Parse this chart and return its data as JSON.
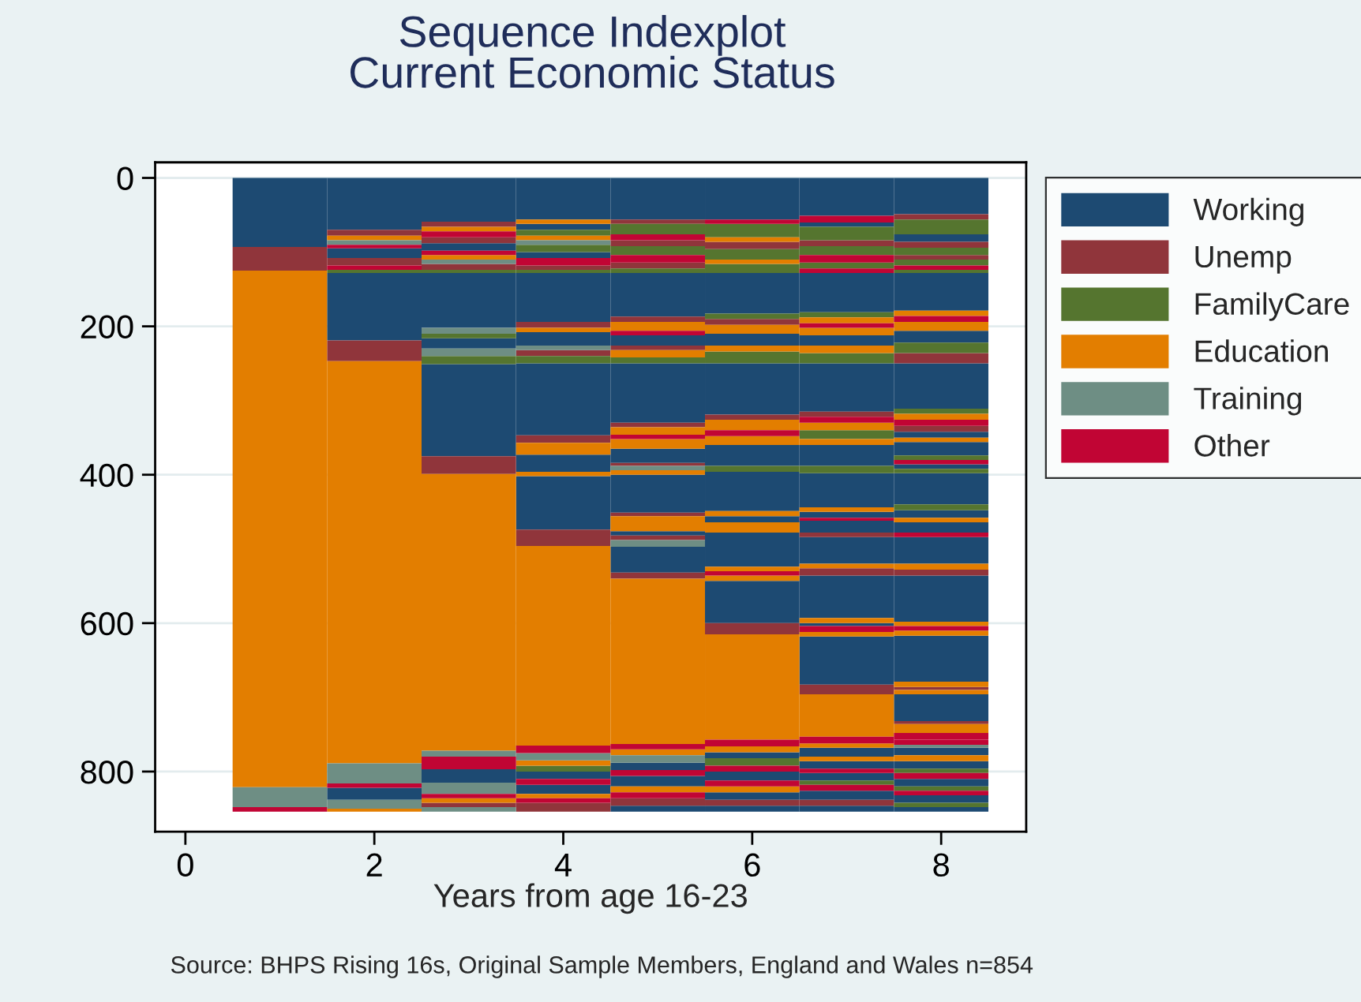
{
  "chart_data": {
    "type": "bar",
    "title": "Sequence Indexplot",
    "subtitle": "Current Economic Status",
    "xlabel": "Years from age 16-23",
    "annotations": [
      "Source: BHPS Rising 16s, Original Sample Members, England and Wales n=854"
    ],
    "xlim": [
      -0.32,
      8.9
    ],
    "xticks": [
      0,
      2,
      4,
      6,
      8
    ],
    "ylim": [
      881,
      -21
    ],
    "yticks": [
      0,
      200,
      400,
      600,
      800
    ],
    "grid": "y",
    "legend": "right",
    "series": [
      {
        "name": "Working",
        "color": "#1d4a72",
        "x": [
          1,
          2,
          3,
          4,
          5,
          6,
          7,
          8
        ],
        "base": [
          0,
          0,
          0,
          0,
          0,
          0,
          0,
          0
        ],
        "values": [
          93,
          70,
          59,
          56,
          56,
          56,
          51,
          49
        ]
      },
      {
        "color": "#1d4a72",
        "x": [
          2,
          3,
          4,
          5,
          6,
          7,
          8
        ],
        "base": [
          95,
          88,
          62,
          128,
          128,
          60,
          76
        ],
        "values": [
          13,
          10,
          8,
          59,
          55,
          6,
          10
        ]
      },
      {
        "color": "#1d4a72",
        "x": [
          2,
          3,
          4,
          5,
          6,
          7,
          8
        ],
        "base": [
          128,
          128,
          100,
          212,
          210,
          128,
          128
        ],
        "values": [
          91,
          74,
          8,
          14,
          16,
          53,
          51
        ]
      },
      {
        "color": "#1d4a72",
        "x": [
          2,
          3,
          4,
          5,
          6,
          7,
          8
        ],
        "base": [
          822,
          216,
          128,
          250,
          250,
          212,
          206
        ],
        "values": [
          16,
          14,
          66,
          80,
          69,
          14,
          16
        ]
      },
      {
        "color": "#1d4a72",
        "x": [
          3,
          4,
          5,
          6,
          7,
          8
        ],
        "base": [
          251,
          208,
          365,
          360,
          250,
          250
        ],
        "values": [
          124,
          18,
          19,
          28,
          65,
          61
        ]
      },
      {
        "color": "#1d4a72",
        "x": [
          3,
          4,
          5,
          6,
          7,
          8
        ],
        "base": [
          797,
          250,
          400,
          396,
          360,
          342
        ],
        "values": [
          18,
          97,
          51,
          53,
          28,
          8
        ]
      },
      {
        "color": "#1d4a72",
        "x": [
          4,
          5,
          6,
          7,
          8
        ],
        "base": [
          373,
          476,
          456,
          398,
          356
        ],
        "values": [
          23,
          6,
          8,
          46,
          18
        ]
      },
      {
        "color": "#1d4a72",
        "x": [
          4,
          5,
          6,
          7,
          8
        ],
        "base": [
          402,
          497,
          478,
          450,
          386
        ],
        "values": [
          72,
          35,
          46,
          8,
          6
        ]
      },
      {
        "color": "#1d4a72",
        "x": [
          4,
          5,
          6,
          7,
          8
        ],
        "base": [
          800,
          788,
          543,
          462,
          398
        ],
        "values": [
          10,
          10,
          57,
          16,
          42
        ]
      },
      {
        "color": "#1d4a72",
        "x": [
          4,
          5,
          6,
          7,
          8
        ],
        "base": [
          818,
          806,
          774,
          484,
          448
        ],
        "values": [
          12,
          14,
          8,
          36,
          10
        ]
      },
      {
        "color": "#1d4a72",
        "x": [
          5,
          6,
          7,
          8
        ],
        "base": [
          846,
          800,
          536,
          464
        ],
        "values": [
          8,
          12,
          57,
          14
        ]
      },
      {
        "color": "#1d4a72",
        "x": [
          6,
          7,
          8
        ],
        "base": [
          828,
          600,
          484
        ],
        "values": [
          10,
          4,
          36
        ]
      },
      {
        "color": "#1d4a72",
        "x": [
          6,
          7,
          8
        ],
        "base": [
          846,
          618,
          536
        ],
        "values": [
          8,
          65,
          62
        ]
      },
      {
        "color": "#1d4a72",
        "x": [
          7,
          8
        ],
        "base": [
          768,
          617
        ],
        "values": [
          12,
          62
        ]
      },
      {
        "color": "#1d4a72",
        "x": [
          7,
          8
        ],
        "base": [
          786,
          696
        ],
        "values": [
          10,
          36
        ]
      },
      {
        "color": "#1d4a72",
        "x": [
          7,
          8
        ],
        "base": [
          802,
          768
        ],
        "values": [
          10,
          10
        ]
      },
      {
        "color": "#1d4a72",
        "x": [
          7,
          8
        ],
        "base": [
          826,
          786
        ],
        "values": [
          12,
          10
        ]
      },
      {
        "color": "#1d4a72",
        "x": [
          7,
          8
        ],
        "base": [
          846,
          810
        ],
        "values": [
          8,
          10
        ]
      },
      {
        "color": "#1d4a72",
        "x": [
          8
        ],
        "base": [
          832
        ],
        "values": [
          10
        ]
      },
      {
        "color": "#1d4a72",
        "x": [
          8
        ],
        "base": [
          848
        ],
        "values": [
          6
        ]
      },
      {
        "name": "Unemp",
        "color": "#90353b",
        "x": [
          1,
          2,
          3,
          4,
          5,
          6,
          7,
          8
        ],
        "base": [
          93,
          70,
          59,
          118,
          56,
          86,
          84,
          49
        ],
        "values": [
          32,
          8,
          7,
          6,
          6,
          10,
          8,
          7
        ]
      },
      {
        "color": "#90353b",
        "x": [
          2,
          3,
          4,
          5,
          6,
          7,
          8
        ],
        "base": [
          108,
          80,
          194,
          84,
          190,
          315,
          86
        ],
        "values": [
          10,
          8,
          8,
          8,
          8,
          7,
          8
        ]
      },
      {
        "color": "#90353b",
        "x": [
          2,
          3,
          4,
          5,
          6,
          7,
          8
        ],
        "base": [
          219,
          116,
          232,
          114,
          319,
          478,
          104
        ],
        "values": [
          28,
          8,
          8,
          8,
          7,
          6,
          6
        ]
      },
      {
        "color": "#90353b",
        "x": [
          3,
          4,
          5,
          6,
          7,
          8
        ],
        "base": [
          375,
          347,
          187,
          600,
          526,
          236
        ],
        "values": [
          24,
          10,
          7,
          15,
          10,
          14
        ]
      },
      {
        "color": "#90353b",
        "x": [
          3,
          4,
          5,
          6,
          7,
          8
        ],
        "base": [
          842,
          474,
          226,
          838,
          683,
          334
        ],
        "values": [
          6,
          22,
          6,
          8,
          13,
          8
        ]
      },
      {
        "color": "#90353b",
        "x": [
          4,
          5,
          7,
          8
        ],
        "base": [
          842,
          330,
          838,
          528
        ],
        "values": [
          12,
          6,
          8,
          8
        ]
      },
      {
        "color": "#90353b",
        "x": [
          5,
          8
        ],
        "base": [
          384,
          686
        ],
        "values": [
          4,
          4
        ]
      },
      {
        "color": "#90353b",
        "x": [
          5,
          8
        ],
        "base": [
          451,
          732
        ],
        "values": [
          5,
          4
        ]
      },
      {
        "color": "#90353b",
        "x": [
          5
        ],
        "base": [
          482
        ],
        "values": [
          6
        ]
      },
      {
        "color": "#90353b",
        "x": [
          5
        ],
        "base": [
          532
        ],
        "values": [
          8
        ]
      },
      {
        "color": "#90353b",
        "x": [
          5
        ],
        "base": [
          836
        ],
        "values": [
          10
        ]
      },
      {
        "name": "FamilyCare",
        "color": "#55752f",
        "x": [
          2,
          3,
          4,
          5,
          6,
          7,
          8
        ],
        "base": [
          124,
          124,
          70,
          62,
          62,
          66,
          56
        ],
        "values": [
          4,
          4,
          8,
          14,
          18,
          18,
          20
        ]
      },
      {
        "color": "#55752f",
        "x": [
          3,
          4,
          5,
          6,
          7,
          8
        ],
        "base": [
          210,
          90,
          92,
          96,
          92,
          94
        ],
        "values": [
          6,
          10,
          12,
          14,
          12,
          10
        ]
      },
      {
        "color": "#55752f",
        "x": [
          3,
          4,
          5,
          6,
          7,
          8
        ],
        "base": [
          240,
          124,
          122,
          116,
          114,
          110
        ],
        "values": [
          11,
          4,
          6,
          12,
          8,
          8
        ]
      },
      {
        "color": "#55752f",
        "x": [
          4,
          5,
          6,
          7,
          8
        ],
        "base": [
          240,
          242,
          183,
          181,
          124
        ],
        "values": [
          10,
          8,
          7,
          7,
          4
        ]
      },
      {
        "color": "#55752f",
        "x": [
          4,
          6,
          7,
          8
        ],
        "base": [
          792,
          234,
          236,
          222
        ],
        "values": [
          8,
          16,
          14,
          14
        ]
      },
      {
        "color": "#55752f",
        "x": [
          6,
          7,
          8
        ],
        "base": [
          388,
          340,
          311
        ],
        "values": [
          8,
          12,
          7
        ]
      },
      {
        "color": "#55752f",
        "x": [
          6,
          7,
          8
        ],
        "base": [
          782,
          388,
          374
        ],
        "values": [
          10,
          10,
          6
        ]
      },
      {
        "color": "#55752f",
        "x": [
          7,
          8
        ],
        "base": [
          812,
          392
        ],
        "values": [
          6,
          6
        ]
      },
      {
        "color": "#55752f",
        "x": [
          8
        ],
        "base": [
          440
        ],
        "values": [
          8
        ]
      },
      {
        "color": "#55752f",
        "x": [
          8
        ],
        "base": [
          796
        ],
        "values": [
          6
        ]
      },
      {
        "color": "#55752f",
        "x": [
          8
        ],
        "base": [
          820
        ],
        "values": [
          6
        ]
      },
      {
        "color": "#55752f",
        "x": [
          8
        ],
        "base": [
          842
        ],
        "values": [
          6
        ]
      },
      {
        "name": "Education",
        "color": "#e37e00",
        "x": [
          1,
          2,
          3,
          4,
          5,
          6,
          7,
          8
        ],
        "base": [
          125,
          78,
          66,
          56,
          194,
          80,
          188,
          179
        ],
        "values": [
          696,
          6,
          6,
          6,
          12,
          6,
          8,
          7
        ]
      },
      {
        "color": "#e37e00",
        "x": [
          2,
          3,
          4,
          5,
          6,
          7,
          8
        ],
        "base": [
          247,
          104,
          78,
          232,
          110,
          202,
          194
        ],
        "values": [
          542,
          6,
          6,
          10,
          6,
          10,
          12
        ]
      },
      {
        "color": "#e37e00",
        "x": [
          2,
          3,
          4,
          5,
          6,
          7,
          8
        ],
        "base": [
          850,
          399,
          202,
          336,
          198,
          226,
          318
        ],
        "values": [
          4,
          373,
          6,
          10,
          12,
          10,
          8
        ]
      },
      {
        "color": "#e37e00",
        "x": [
          3,
          4,
          5,
          6,
          7,
          8
        ],
        "base": [
          836,
          357,
          352,
          226,
          330,
          350
        ],
        "values": [
          6,
          16,
          13,
          8,
          10,
          6
        ]
      },
      {
        "color": "#e37e00",
        "x": [
          4,
          5,
          6,
          7,
          8
        ],
        "base": [
          396,
          394,
          326,
          352,
          458
        ],
        "values": [
          6,
          6,
          14,
          8,
          6
        ]
      },
      {
        "color": "#e37e00",
        "x": [
          4,
          5,
          6,
          7,
          8
        ],
        "base": [
          496,
          456,
          348,
          444,
          520
        ],
        "values": [
          269,
          20,
          12,
          6,
          8
        ]
      },
      {
        "color": "#e37e00",
        "x": [
          4,
          5,
          6,
          7,
          8
        ],
        "base": [
          785,
          540,
          449,
          520,
          598
        ],
        "values": [
          7,
          223,
          7,
          6,
          6
        ]
      },
      {
        "color": "#e37e00",
        "x": [
          4,
          5,
          6,
          7,
          8
        ],
        "base": [
          830,
          770,
          464,
          593,
          610
        ],
        "values": [
          6,
          8,
          14,
          7,
          7
        ]
      },
      {
        "color": "#e37e00",
        "x": [
          5,
          6,
          7,
          8
        ],
        "base": [
          820,
          524,
          612,
          679
        ],
        "values": [
          8,
          6,
          6,
          7
        ]
      },
      {
        "color": "#e37e00",
        "x": [
          6,
          7,
          8
        ],
        "base": [
          536,
          696,
          690
        ],
        "values": [
          7,
          57,
          6
        ]
      },
      {
        "color": "#e37e00",
        "x": [
          6,
          7,
          8
        ],
        "base": [
          615,
          762,
          736
        ],
        "values": [
          142,
          6,
          12
        ]
      },
      {
        "color": "#e37e00",
        "x": [
          6,
          7,
          8
        ],
        "base": [
          766,
          780,
          778
        ],
        "values": [
          8,
          6,
          8
        ]
      },
      {
        "color": "#e37e00",
        "x": [
          6
        ],
        "base": [
          820
        ],
        "values": [
          8
        ]
      },
      {
        "name": "Training",
        "color": "#6e8e84",
        "x": [
          1,
          2,
          3,
          4,
          5,
          8
        ],
        "base": [
          821,
          84,
          110,
          84,
          388,
          764
        ],
        "values": [
          27,
          6,
          6,
          6,
          6,
          4
        ]
      },
      {
        "color": "#6e8e84",
        "x": [
          2,
          3,
          4,
          5
        ],
        "base": [
          789,
          202,
          226,
          488
        ],
        "values": [
          27,
          8,
          6,
          9
        ]
      },
      {
        "color": "#6e8e84",
        "x": [
          2,
          3,
          4,
          5
        ],
        "base": [
          838,
          230,
          775,
          778
        ],
        "values": [
          12,
          10,
          10,
          10
        ]
      },
      {
        "color": "#6e8e84",
        "x": [
          3
        ],
        "base": [
          772
        ],
        "values": [
          8
        ]
      },
      {
        "color": "#6e8e84",
        "x": [
          3
        ],
        "base": [
          815
        ],
        "values": [
          15
        ]
      },
      {
        "color": "#6e8e84",
        "x": [
          3
        ],
        "base": [
          848
        ],
        "values": [
          6
        ]
      },
      {
        "name": "Other",
        "color": "#c10534",
        "x": [
          1,
          2,
          3,
          4,
          5,
          6,
          7,
          8
        ],
        "base": [
          848,
          90,
          72,
          108,
          76,
          56,
          51,
          118
        ],
        "values": [
          6,
          5,
          8,
          10,
          8,
          6,
          9,
          6
        ]
      },
      {
        "color": "#c10534",
        "x": [
          2,
          3,
          4,
          5,
          6,
          7,
          8
        ],
        "base": [
          118,
          98,
          765,
          104,
          340,
          104,
          186
        ],
        "values": [
          6,
          6,
          10,
          10,
          8,
          10,
          8
        ]
      },
      {
        "color": "#c10534",
        "x": [
          2,
          3,
          4,
          5,
          6,
          7,
          8
        ],
        "base": [
          816,
          780,
          810,
          206,
          530,
          122,
          326
        ],
        "values": [
          6,
          17,
          8,
          6,
          6,
          6,
          8
        ]
      },
      {
        "color": "#c10534",
        "x": [
          3,
          4,
          5,
          6,
          7,
          8
        ],
        "base": [
          830,
          836,
          346,
          757,
          196,
          380
        ],
        "values": [
          6,
          6,
          6,
          9,
          6,
          6
        ]
      },
      {
        "color": "#c10534",
        "x": [
          5,
          6,
          7,
          8
        ],
        "base": [
          763,
          792,
          322,
          478
        ],
        "values": [
          7,
          8,
          8,
          6
        ]
      },
      {
        "color": "#c10534",
        "x": [
          5,
          6,
          7,
          8
        ],
        "base": [
          798,
          812,
          458,
          604
        ],
        "values": [
          8,
          8,
          4,
          6
        ]
      },
      {
        "color": "#c10534",
        "x": [
          5,
          7,
          8
        ],
        "base": [
          828,
          604,
          748
        ],
        "values": [
          8,
          8,
          9
        ]
      },
      {
        "color": "#c10534",
        "x": [
          7,
          8
        ],
        "base": [
          753,
          757
        ],
        "values": [
          9,
          7
        ]
      },
      {
        "color": "#c10534",
        "x": [
          7,
          8
        ],
        "base": [
          796,
          802
        ],
        "values": [
          6,
          8
        ]
      },
      {
        "color": "#c10534",
        "x": [
          7,
          8
        ],
        "base": [
          818,
          826
        ],
        "values": [
          8,
          6
        ]
      }
    ]
  }
}
